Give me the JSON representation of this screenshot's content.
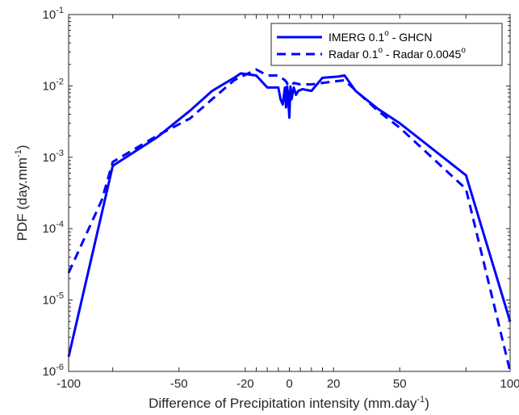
{
  "chart_data": {
    "type": "line",
    "xlabel": "Difference of Precipitation intensity (mm.day",
    "xlabel_sup": "-1",
    "xlabel_end": ")",
    "ylabel": "PDF (day.mm",
    "ylabel_sup": "-1",
    "ylabel_end": ")",
    "xlim": [
      -100,
      100
    ],
    "ylim": [
      1e-06,
      0.1
    ],
    "y_scale": "log",
    "grid": false,
    "legend_position": "top-right",
    "x_ticks": [
      {
        "value": -100,
        "label": "-100"
      },
      {
        "value": -50,
        "label": "-50"
      },
      {
        "value": -20,
        "label": "-20"
      },
      {
        "value": 0,
        "label": "0"
      },
      {
        "value": 20,
        "label": "20"
      },
      {
        "value": 50,
        "label": "50"
      },
      {
        "value": 100,
        "label": "100"
      }
    ],
    "x_tick_positions": [
      -100,
      -80,
      -50,
      -20,
      -15,
      -10,
      -5,
      0,
      5,
      10,
      15,
      20,
      50,
      80,
      100
    ],
    "y_ticks": [
      {
        "value": 1e-06,
        "base": "10",
        "exp": "-6"
      },
      {
        "value": 1e-05,
        "base": "10",
        "exp": "-5"
      },
      {
        "value": 0.0001,
        "base": "10",
        "exp": "-4"
      },
      {
        "value": 0.001,
        "base": "10",
        "exp": "-3"
      },
      {
        "value": 0.01,
        "base": "10",
        "exp": "-2"
      },
      {
        "value": 0.1,
        "base": "10",
        "exp": "-1"
      }
    ],
    "series": [
      {
        "name": "IMERG 0.1",
        "name_sup": "o",
        "name_end": " - GHCN",
        "color": "#0000ff",
        "dash": "solid",
        "x": [
          -100,
          -80,
          -60,
          -45,
          -35,
          -25,
          -22,
          -15,
          -10,
          -5,
          -4,
          -3,
          -2,
          -1.5,
          -1,
          -0.5,
          0,
          0.5,
          1,
          1.5,
          2,
          3,
          4,
          6,
          10,
          15,
          22,
          25,
          30,
          40,
          50,
          80,
          100
        ],
        "y": [
          1.6e-06,
          0.00076,
          0.0019,
          0.0045,
          0.0085,
          0.013,
          0.015,
          0.014,
          0.0095,
          0.0095,
          0.0065,
          0.0055,
          0.0095,
          0.005,
          0.0098,
          0.0065,
          0.0036,
          0.0098,
          0.0065,
          0.008,
          0.0095,
          0.0075,
          0.0085,
          0.009,
          0.0085,
          0.013,
          0.0135,
          0.014,
          0.0085,
          0.0048,
          0.003,
          0.00056,
          5e-06
        ]
      },
      {
        "name": "Radar 0.1",
        "name_sup": "o",
        "name_end": " - Radar 0.0045",
        "name_end_sup": "o",
        "color": "#0000ff",
        "dash": "dashed",
        "x": [
          -100,
          -85,
          -80,
          -60,
          -45,
          -35,
          -25,
          -15,
          -10,
          -5,
          -2,
          -1,
          0,
          1,
          2,
          5,
          10,
          15,
          20,
          25,
          40,
          50,
          80,
          100
        ],
        "y": [
          2.4e-05,
          0.00025,
          0.00086,
          0.002,
          0.0035,
          0.0065,
          0.012,
          0.017,
          0.014,
          0.014,
          0.012,
          0.011,
          0.006,
          0.01,
          0.011,
          0.0105,
          0.0105,
          0.011,
          0.0115,
          0.012,
          0.0045,
          0.0026,
          0.00036,
          1e-06
        ]
      }
    ]
  }
}
